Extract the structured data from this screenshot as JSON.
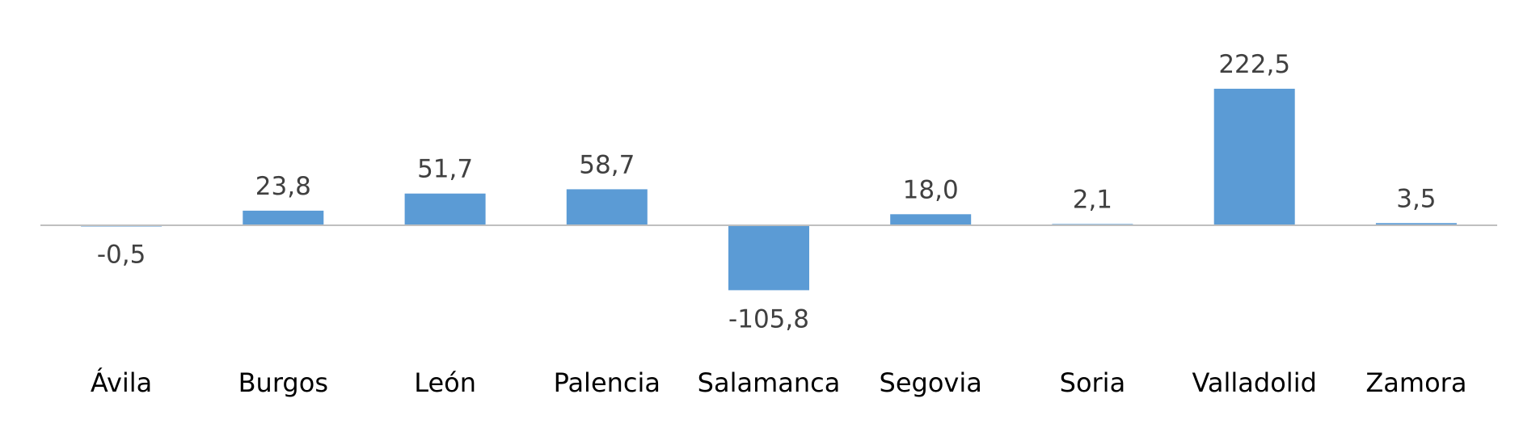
{
  "chart_data": {
    "type": "bar",
    "categories": [
      "Ávila",
      "Burgos",
      "León",
      "Palencia",
      "Salamanca",
      "Segovia",
      "Soria",
      "Valladolid",
      "Zamora"
    ],
    "values": [
      -0.5,
      23.8,
      51.7,
      58.7,
      -105.8,
      18.0,
      2.1,
      222.5,
      3.5
    ],
    "data_labels": [
      "-0,5",
      "23,8",
      "51,7",
      "58,7",
      "-105,8",
      "18,0",
      "2,1",
      "222,5",
      "3,5"
    ],
    "title": "",
    "xlabel": "",
    "ylabel": "",
    "ylim": [
      -105.8,
      222.5
    ],
    "grid": false,
    "legend": "none",
    "colors": {
      "bar": "#5B9BD5",
      "axis": "#BFBFBF",
      "data_label": "#404040",
      "category_label": "#000000"
    }
  }
}
